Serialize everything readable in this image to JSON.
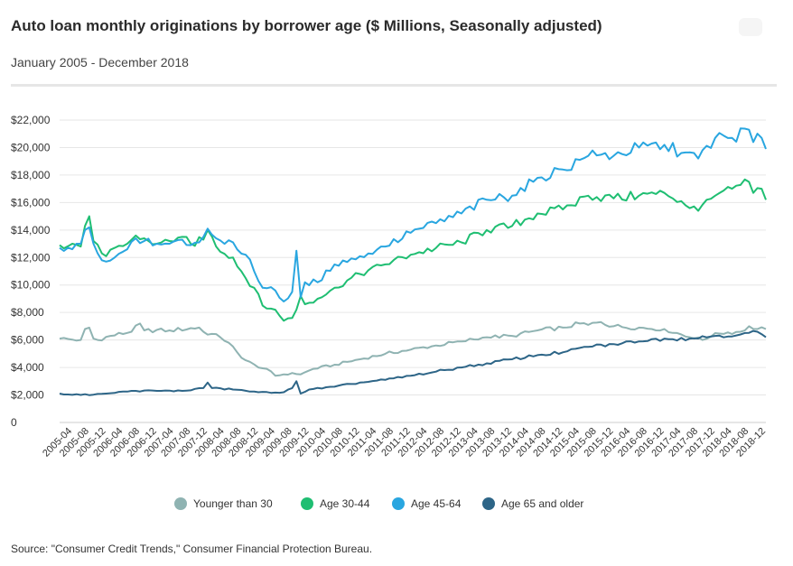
{
  "title": "Auto loan monthly originations by borrower age ($ Millions, Seasonally adjusted)",
  "subtitle": "January 2005 - December 2018",
  "source": "Source: \"Consumer Credit Trends,\" Consumer Financial Protection Bureau.",
  "chart_data": {
    "type": "line",
    "title": "Auto loan monthly originations by borrower age ($ Millions, Seasonally adjusted)",
    "subtitle": "January 2005 - December 2018",
    "xlabel": "",
    "ylabel": "",
    "ylim": [
      0,
      22000
    ],
    "yticks": [
      0,
      2000,
      4000,
      6000,
      8000,
      10000,
      12000,
      14000,
      16000,
      18000,
      20000,
      22000
    ],
    "ytick_labels": [
      "0",
      "$2,000",
      "$4,000",
      "$6,000",
      "$8,000",
      "$10,000",
      "$12,000",
      "$14,000",
      "$16,000",
      "$18,000",
      "$20,000",
      "$22,000"
    ],
    "xticks": [
      "2005-04",
      "2005-08",
      "2005-12",
      "2006-04",
      "2006-08",
      "2006-12",
      "2007-04",
      "2007-08",
      "2007-12",
      "2008-04",
      "2008-08",
      "2008-12",
      "2009-04",
      "2009-08",
      "2009-12",
      "2010-04",
      "2010-08",
      "2010-12",
      "2011-04",
      "2011-08",
      "2011-12",
      "2012-04",
      "2012-08",
      "2012-12",
      "2013-04",
      "2013-08",
      "2013-12",
      "2014-04",
      "2014-08",
      "2014-12",
      "2015-04",
      "2015-08",
      "2015-12",
      "2016-04",
      "2016-08",
      "2016-12",
      "2017-04",
      "2017-08",
      "2017-12",
      "2018-04",
      "2018-08",
      "2018-12"
    ],
    "grid": true,
    "legend_position": "bottom",
    "series": [
      {
        "name": "Younger than 30",
        "color": "#8fb3b2",
        "anchors": [
          [
            "2005-01",
            6100
          ],
          [
            "2005-06",
            6000
          ],
          [
            "2005-07",
            6800
          ],
          [
            "2005-08",
            6900
          ],
          [
            "2005-09",
            6100
          ],
          [
            "2005-10",
            6000
          ],
          [
            "2006-01",
            6300
          ],
          [
            "2006-06",
            6600
          ],
          [
            "2006-08",
            7200
          ],
          [
            "2006-09",
            6700
          ],
          [
            "2007-03",
            6700
          ],
          [
            "2007-10",
            6900
          ],
          [
            "2007-11",
            6600
          ],
          [
            "2008-03",
            6200
          ],
          [
            "2008-05",
            5800
          ],
          [
            "2008-08",
            4700
          ],
          [
            "2008-12",
            4000
          ],
          [
            "2009-02",
            3900
          ],
          [
            "2009-04",
            3400
          ],
          [
            "2009-08",
            3600
          ],
          [
            "2009-10",
            3500
          ],
          [
            "2010-01",
            3900
          ],
          [
            "2010-06",
            4200
          ],
          [
            "2010-12",
            4600
          ],
          [
            "2011-06",
            5000
          ],
          [
            "2011-12",
            5300
          ],
          [
            "2012-06",
            5600
          ],
          [
            "2012-12",
            5900
          ],
          [
            "2013-06",
            6200
          ],
          [
            "2013-12",
            6300
          ],
          [
            "2014-06",
            6700
          ],
          [
            "2014-12",
            6900
          ],
          [
            "2015-04",
            7200
          ],
          [
            "2015-06",
            7100
          ],
          [
            "2015-09",
            7300
          ],
          [
            "2015-12",
            7000
          ],
          [
            "2016-06",
            6900
          ],
          [
            "2016-12",
            6800
          ],
          [
            "2017-04",
            6400
          ],
          [
            "2017-06",
            6200
          ],
          [
            "2017-09",
            6000
          ],
          [
            "2017-12",
            6500
          ],
          [
            "2018-06",
            6600
          ],
          [
            "2018-08",
            7000
          ],
          [
            "2018-10",
            6800
          ],
          [
            "2018-12",
            6800
          ]
        ]
      },
      {
        "name": "Age 30-44",
        "color": "#1fbe72",
        "anchors": [
          [
            "2005-01",
            12900
          ],
          [
            "2005-04",
            13000
          ],
          [
            "2005-06",
            12800
          ],
          [
            "2005-07",
            14300
          ],
          [
            "2005-08",
            15000
          ],
          [
            "2005-09",
            13200
          ],
          [
            "2005-11",
            12300
          ],
          [
            "2005-12",
            12100
          ],
          [
            "2006-02",
            12700
          ],
          [
            "2006-05",
            13000
          ],
          [
            "2006-07",
            13600
          ],
          [
            "2006-09",
            13400
          ],
          [
            "2006-12",
            13000
          ],
          [
            "2007-03",
            13200
          ],
          [
            "2007-06",
            13500
          ],
          [
            "2007-08",
            13000
          ],
          [
            "2007-11",
            13300
          ],
          [
            "2007-12",
            14000
          ],
          [
            "2008-02",
            12800
          ],
          [
            "2008-06",
            12000
          ],
          [
            "2008-09",
            10500
          ],
          [
            "2008-11",
            9800
          ],
          [
            "2009-01",
            8500
          ],
          [
            "2009-04",
            8200
          ],
          [
            "2009-06",
            7400
          ],
          [
            "2009-08",
            7600
          ],
          [
            "2009-09",
            8200
          ],
          [
            "2009-10",
            9200
          ],
          [
            "2009-11",
            8600
          ],
          [
            "2010-02",
            9000
          ],
          [
            "2010-06",
            9800
          ],
          [
            "2010-12",
            10800
          ],
          [
            "2011-06",
            11500
          ],
          [
            "2011-12",
            12200
          ],
          [
            "2012-06",
            12700
          ],
          [
            "2012-12",
            13100
          ],
          [
            "2013-06",
            14000
          ],
          [
            "2013-12",
            14300
          ],
          [
            "2014-06",
            15200
          ],
          [
            "2014-12",
            15500
          ],
          [
            "2015-06",
            16500
          ],
          [
            "2015-12",
            16300
          ],
          [
            "2016-06",
            16500
          ],
          [
            "2016-12",
            16700
          ],
          [
            "2017-04",
            16100
          ],
          [
            "2017-08",
            15400
          ],
          [
            "2017-10",
            16200
          ],
          [
            "2017-12",
            16500
          ],
          [
            "2018-04",
            17000
          ],
          [
            "2018-08",
            17500
          ],
          [
            "2018-09",
            16700
          ],
          [
            "2018-11",
            17000
          ],
          [
            "2018-12",
            16200
          ]
        ]
      },
      {
        "name": "Age 45-64",
        "color": "#29a6e0",
        "anchors": [
          [
            "2005-01",
            12700
          ],
          [
            "2005-04",
            12600
          ],
          [
            "2005-06",
            13000
          ],
          [
            "2005-07",
            14000
          ],
          [
            "2005-08",
            14200
          ],
          [
            "2005-09",
            13000
          ],
          [
            "2005-11",
            11800
          ],
          [
            "2005-12",
            11700
          ],
          [
            "2006-02",
            12000
          ],
          [
            "2006-05",
            12600
          ],
          [
            "2006-07",
            13400
          ],
          [
            "2006-09",
            13200
          ],
          [
            "2006-12",
            13000
          ],
          [
            "2007-03",
            13000
          ],
          [
            "2007-06",
            13300
          ],
          [
            "2007-08",
            12900
          ],
          [
            "2007-11",
            13500
          ],
          [
            "2007-12",
            14100
          ],
          [
            "2008-02",
            13400
          ],
          [
            "2008-06",
            13100
          ],
          [
            "2008-09",
            12200
          ],
          [
            "2008-11",
            11000
          ],
          [
            "2009-01",
            9800
          ],
          [
            "2009-04",
            9600
          ],
          [
            "2009-06",
            8800
          ],
          [
            "2009-08",
            9500
          ],
          [
            "2009-09",
            12500
          ],
          [
            "2009-10",
            9100
          ],
          [
            "2009-11",
            10200
          ],
          [
            "2010-02",
            10200
          ],
          [
            "2010-06",
            11500
          ],
          [
            "2010-12",
            12100
          ],
          [
            "2011-06",
            12800
          ],
          [
            "2011-12",
            13800
          ],
          [
            "2012-06",
            14500
          ],
          [
            "2012-12",
            15200
          ],
          [
            "2013-06",
            16200
          ],
          [
            "2013-12",
            16500
          ],
          [
            "2014-06",
            17800
          ],
          [
            "2014-12",
            18400
          ],
          [
            "2015-06",
            19400
          ],
          [
            "2015-12",
            19400
          ],
          [
            "2016-06",
            20000
          ],
          [
            "2016-12",
            20200
          ],
          [
            "2017-04",
            19600
          ],
          [
            "2017-08",
            19200
          ],
          [
            "2017-12",
            20700
          ],
          [
            "2018-04",
            20700
          ],
          [
            "2018-08",
            21300
          ],
          [
            "2018-09",
            20400
          ],
          [
            "2018-11",
            20700
          ],
          [
            "2018-12",
            19900
          ]
        ]
      },
      {
        "name": "Age 65 and older",
        "color": "#2d6587",
        "anchors": [
          [
            "2005-01",
            2100
          ],
          [
            "2005-06",
            2000
          ],
          [
            "2005-12",
            2100
          ],
          [
            "2006-06",
            2300
          ],
          [
            "2006-12",
            2300
          ],
          [
            "2007-06",
            2300
          ],
          [
            "2007-11",
            2500
          ],
          [
            "2007-12",
            2900
          ],
          [
            "2008-01",
            2500
          ],
          [
            "2008-06",
            2400
          ],
          [
            "2008-12",
            2200
          ],
          [
            "2009-06",
            2200
          ],
          [
            "2009-08",
            2500
          ],
          [
            "2009-09",
            3000
          ],
          [
            "2009-10",
            2100
          ],
          [
            "2009-12",
            2400
          ],
          [
            "2010-06",
            2600
          ],
          [
            "2010-12",
            2900
          ],
          [
            "2011-06",
            3100
          ],
          [
            "2011-12",
            3400
          ],
          [
            "2012-06",
            3700
          ],
          [
            "2012-12",
            4000
          ],
          [
            "2013-06",
            4300
          ],
          [
            "2013-12",
            4600
          ],
          [
            "2014-06",
            4900
          ],
          [
            "2014-12",
            5100
          ],
          [
            "2015-06",
            5500
          ],
          [
            "2015-12",
            5700
          ],
          [
            "2016-06",
            5900
          ],
          [
            "2016-12",
            6100
          ],
          [
            "2017-06",
            6100
          ],
          [
            "2017-12",
            6300
          ],
          [
            "2018-06",
            6400
          ],
          [
            "2018-10",
            6600
          ],
          [
            "2018-12",
            6200
          ]
        ]
      }
    ]
  }
}
